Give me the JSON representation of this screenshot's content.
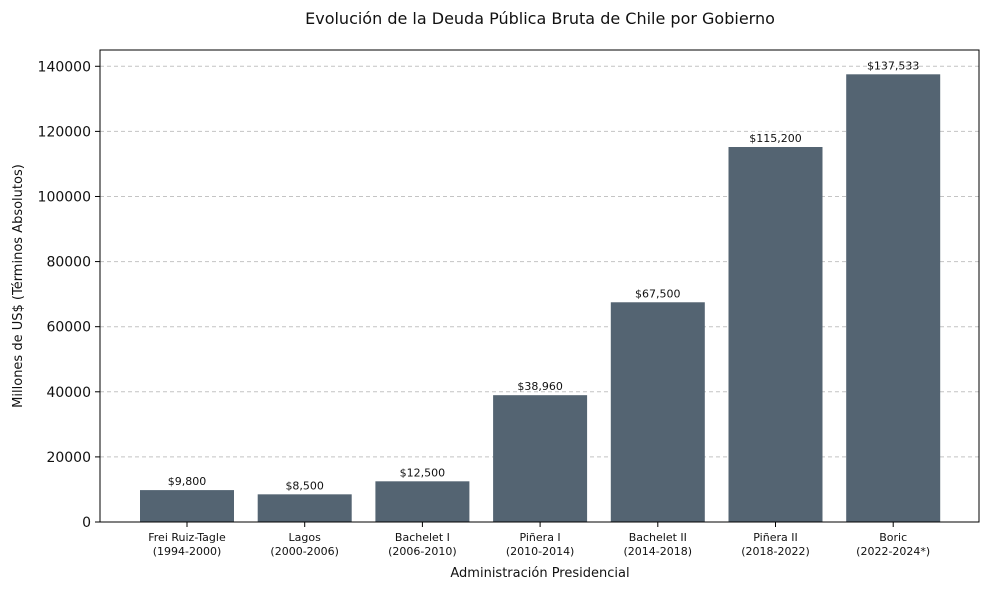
{
  "chart_data": {
    "type": "bar",
    "title": "Evolución de la Deuda Pública Bruta de Chile por Gobierno",
    "xlabel": "Administración Presidencial",
    "ylabel": "Millones de US$ (Términos Absolutos)",
    "ylim": [
      0,
      145000
    ],
    "yticks": [
      0,
      20000,
      40000,
      60000,
      80000,
      100000,
      120000,
      140000
    ],
    "ytick_labels": [
      "0",
      "20000",
      "40000",
      "60000",
      "80000",
      "100000",
      "120000",
      "140000"
    ],
    "grid": "horizontal-dashed",
    "bar_color": "#546472",
    "categories": [
      {
        "name": "Frei Ruiz-Tagle",
        "period": "(1994-2000)"
      },
      {
        "name": "Lagos",
        "period": "(2000-2006)"
      },
      {
        "name": "Bachelet I",
        "period": "(2006-2010)"
      },
      {
        "name": "Piñera I",
        "period": "(2010-2014)"
      },
      {
        "name": "Bachelet II",
        "period": "(2014-2018)"
      },
      {
        "name": "Piñera II",
        "period": "(2018-2022)"
      },
      {
        "name": "Boric",
        "period": "(2022-2024*)"
      }
    ],
    "values": [
      9800,
      8500,
      12500,
      38960,
      67500,
      115200,
      137533
    ],
    "value_labels": [
      "$9,800",
      "$8,500",
      "$12,500",
      "$38,960",
      "$67,500",
      "$115,200",
      "$137,533"
    ]
  }
}
